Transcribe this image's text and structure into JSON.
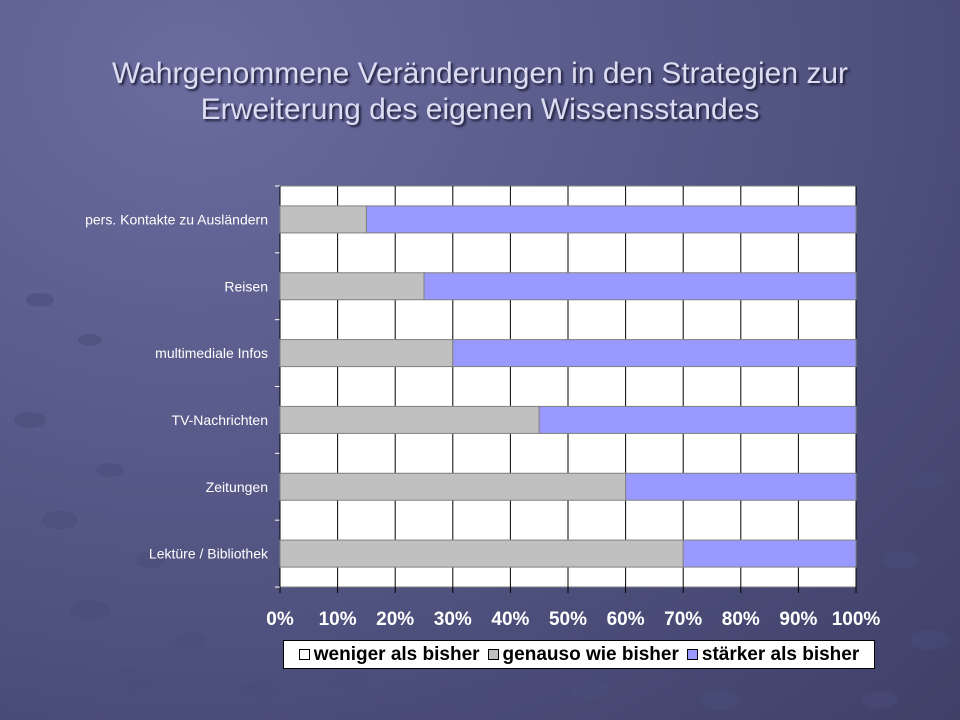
{
  "title": "Wahrgenommene Veränderungen in den Strategien zur Erweiterung des eigenen Wissensstandes",
  "chart_data": {
    "type": "bar",
    "orientation": "horizontal",
    "stacked": true,
    "percent_scale": true,
    "categories": [
      "pers. Kontakte zu Ausländern",
      "Reisen",
      "multimediale Infos",
      "TV-Nachrichten",
      "Zeitungen",
      "Lektüre / Bibliothek"
    ],
    "series": [
      {
        "name": "weniger als bisher",
        "color": "#ffffff",
        "values": [
          0,
          0,
          0,
          0,
          0,
          0
        ]
      },
      {
        "name": "genauso wie bisher",
        "color": "#c0c0c0",
        "values": [
          15,
          25,
          30,
          45,
          60,
          70
        ]
      },
      {
        "name": "stärker als bisher",
        "color": "#9999ff",
        "values": [
          85,
          75,
          70,
          55,
          40,
          30
        ]
      }
    ],
    "xlim": [
      0,
      100
    ],
    "x_ticks": [
      "0%",
      "10%",
      "20%",
      "30%",
      "40%",
      "50%",
      "60%",
      "70%",
      "80%",
      "90%",
      "100%"
    ],
    "grid": true,
    "legend_position": "bottom"
  }
}
